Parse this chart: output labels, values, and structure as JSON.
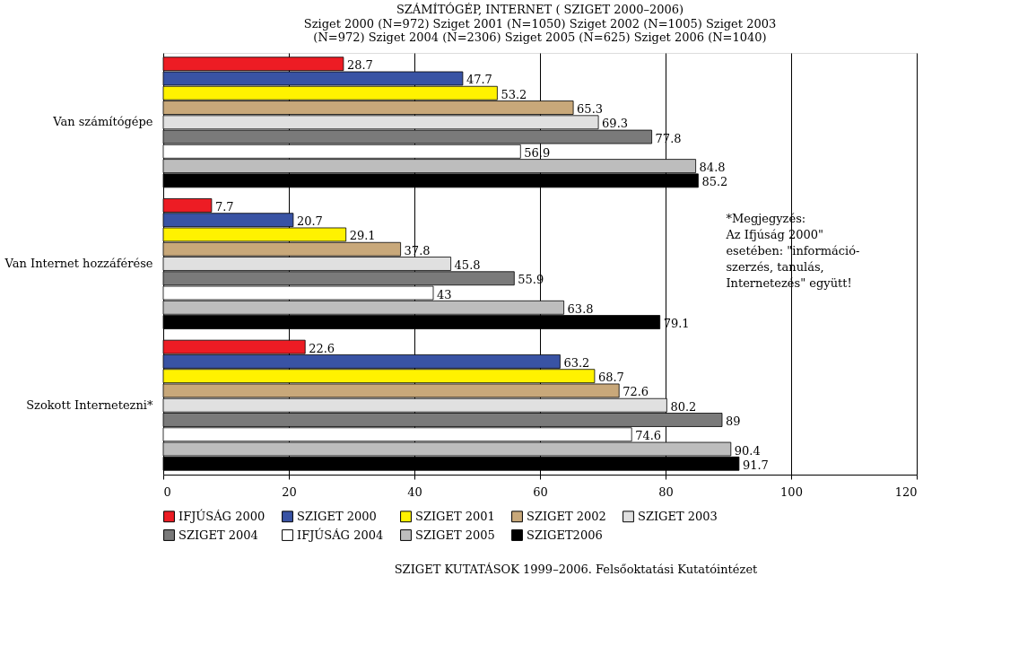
{
  "chart_data": {
    "type": "bar",
    "orientation": "horizontal",
    "title": "SZÁMÍTÓGÉP, INTERNET ( SZIGET 2000–2006)",
    "subtitle": "Sziget 2000 (N=972) Sziget 2001 (N=1050) Sziget 2002 (N=1005) Sziget 2003 (N=972) Sziget 2004 (N=2306) Sziget 2005 (N=625) Sziget 2006 (N=1040)",
    "categories": [
      "Van számítógépe",
      "Van Internet hozzáférése",
      "Szokott Internetezni*"
    ],
    "series": [
      {
        "name": "IFJÚSÁG 2000",
        "color": "#ed1c24",
        "values": [
          28.7,
          7.7,
          22.6
        ]
      },
      {
        "name": "SZIGET 2000",
        "color": "#3953a4",
        "values": [
          47.7,
          20.7,
          63.2
        ]
      },
      {
        "name": "SZIGET 2001",
        "color": "#fff200",
        "values": [
          53.2,
          29.1,
          68.7
        ]
      },
      {
        "name": "SZIGET 2002",
        "color": "#c8a87a",
        "values": [
          65.3,
          37.8,
          72.6
        ]
      },
      {
        "name": "SZIGET 2003",
        "color": "#e0e0e0",
        "values": [
          69.3,
          45.8,
          80.2
        ]
      },
      {
        "name": "SZIGET 2004",
        "color": "#7a7a7a",
        "values": [
          77.8,
          55.9,
          89
        ]
      },
      {
        "name": "IFJÚSÁG 2004",
        "color": "#ffffff",
        "values": [
          56.9,
          43,
          74.6
        ]
      },
      {
        "name": "SZIGET 2005",
        "color": "#bdbdbd",
        "values": [
          84.8,
          63.8,
          90.4
        ]
      },
      {
        "name": "SZIGET2006",
        "color": "#000000",
        "values": [
          85.2,
          79.1,
          91.7
        ]
      }
    ],
    "xlim": [
      0,
      120
    ],
    "xticks": [
      0,
      20,
      40,
      60,
      80,
      100,
      120
    ],
    "grid": "x",
    "legend": "bottom",
    "data_labels": true,
    "annotations": [
      "*Megjegyzés:\nAz Ifjúság 2000\"\nesetében: \"információ-\nszerzés, tanulás,\nInternetezés\" együtt!",
      "SZIGET KUTATÁSOK 1999–2006. Felsőoktatási Kutatóintézet"
    ]
  }
}
